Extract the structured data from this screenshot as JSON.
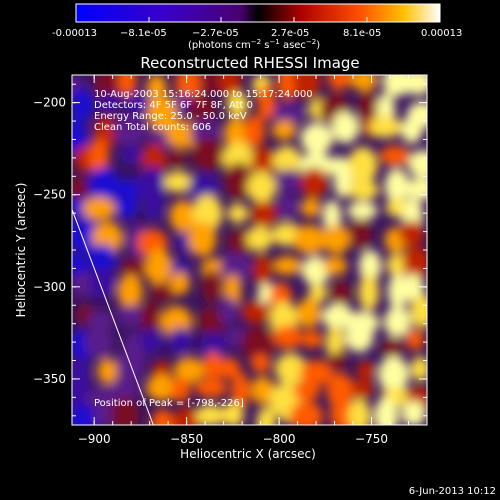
{
  "colorbar": {
    "tick_labels": [
      "-0.00013",
      "−8.1e-05",
      "−2.7e-05",
      "2.7e-05",
      "8.1e-05",
      "0.00013"
    ],
    "units_label": "(photons cm",
    "units_exp1": "−2",
    "units_mid": " s",
    "units_exp2": "−1",
    "units_end": " asec",
    "units_exp3": "−2",
    "units_close": ")",
    "range": [
      -0.00013,
      0.00013
    ]
  },
  "chart_data": {
    "type": "heatmap",
    "title": "Reconstructed RHESSI Image",
    "xlabel": "Heliocentric X (arcsec)",
    "ylabel": "Heliocentric Y (arcsec)",
    "xlim": [
      -912,
      -720
    ],
    "ylim": [
      -375,
      -185
    ],
    "x_ticks": [
      -900,
      -850,
      -800,
      -750
    ],
    "y_ticks": [
      -350,
      -300,
      -250,
      -200
    ],
    "x_tick_labels": [
      "−900",
      "−850",
      "−800",
      "−750"
    ],
    "y_tick_labels": [
      "−350",
      "−300",
      "−250",
      "−200"
    ],
    "info_lines": [
      "10-Aug-2003 15:16:24.000 to 15:17:24.000",
      "Detectors: 4F 5F 6F 7F 8F, Att 0",
      "Energy Range: 25.0 - 50.0 keV",
      "Clean     Total counts: 606"
    ],
    "peak_label": "Position of Peak = [-798,-226]",
    "peak_position": [
      -798,
      -226
    ],
    "limb_line": [
      [
        -912,
        -258
      ],
      [
        -868,
        -375
      ]
    ]
  },
  "footer": {
    "timestamp": "6-Jun-2013 10:12"
  }
}
